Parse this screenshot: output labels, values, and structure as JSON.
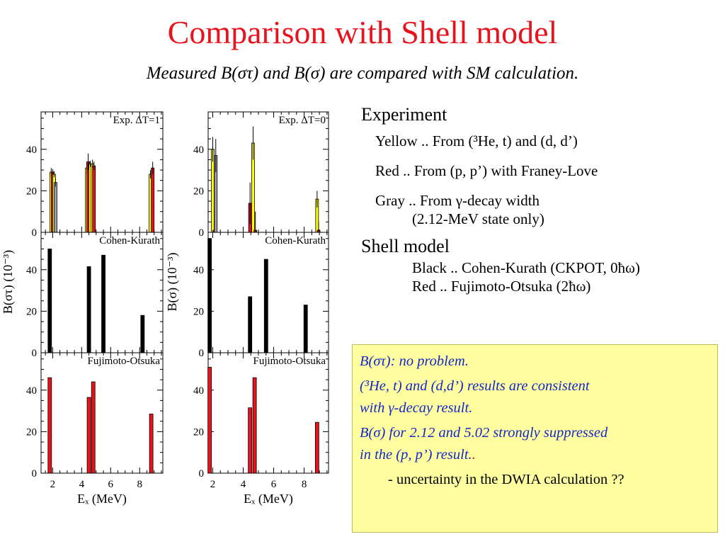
{
  "title": "Comparison with Shell model",
  "subtitle": "Measured B(στ) and B(σ) are compared with SM calculation.",
  "legend_panel": {
    "experiment_heading": "Experiment",
    "yellow": "Yellow .. From (³He, t) and  (d, d’)",
    "red": "Red .. From (p, p’) with Franey-Love",
    "gray_line1": "Gray .. From γ-decay width",
    "gray_line2": "(2.12-MeV state only)",
    "shell_heading": "Shell model",
    "black": "Black .. Cohen-Kurath (CKPOT, 0ħω)",
    "fo": "Red .. Fujimoto-Otsuka (2ħω)"
  },
  "notes": {
    "n1": "B(στ): no problem.",
    "n2a": "(³He, t) and (d,d’) results are consistent",
    "n2b": "with γ-decay result.",
    "n3a": "B(σ) for 2.12 and 5.02 strongly suppressed",
    "n3b": "in the (p, p’) result.",
    "n3dot": ".",
    "n4": "- uncertainty in the DWIA calculation ??"
  },
  "colors": {
    "title": "#e8131c",
    "yellow": "#ffff00",
    "red": "#e8131c",
    "gray": "#a0a0a0",
    "black": "#000000",
    "note_text": "#1428c8",
    "note_bg": "#ffffa0"
  },
  "chart_data": [
    {
      "type": "bar",
      "ylabel": "B(στ) (10⁻³)",
      "xlabel": "Eₓ (MeV)",
      "xlim": [
        1.2,
        9.6
      ],
      "xticks": [
        "2",
        "4",
        "6",
        "8"
      ],
      "yticks": [
        "0",
        "20",
        "40"
      ],
      "panels": [
        {
          "label": "Exp. ΔT=1",
          "ylim": [
            0,
            58
          ],
          "bars": [
            {
              "x": 1.9,
              "v": 29,
              "e": 2,
              "c": "yellow"
            },
            {
              "x": 2.0,
              "v": 29,
              "e": 1.5,
              "c": "red"
            },
            {
              "x": 2.1,
              "v": 28,
              "e": 1.5,
              "c": "yellow"
            },
            {
              "x": 2.2,
              "v": 24,
              "e": 2,
              "c": "gray"
            },
            {
              "x": 4.35,
              "v": 31,
              "e": 3,
              "c": "yellow"
            },
            {
              "x": 4.45,
              "v": 34,
              "e": 4,
              "c": "red"
            },
            {
              "x": 4.6,
              "v": 33,
              "e": 1.5,
              "c": "yellow"
            },
            {
              "x": 4.75,
              "v": 33,
              "e": 2,
              "c": "yellow"
            },
            {
              "x": 4.85,
              "v": 32,
              "e": 2,
              "c": "red"
            },
            {
              "x": 8.75,
              "v": 28,
              "e": 2,
              "c": "yellow"
            },
            {
              "x": 8.9,
              "v": 31,
              "e": 3,
              "c": "red"
            }
          ]
        },
        {
          "label": "Cohen-Kurath",
          "ylim": [
            0,
            58
          ],
          "bars": [
            {
              "x": 1.8,
              "v": 50,
              "c": "black"
            },
            {
              "x": 4.5,
              "v": 41.5,
              "c": "black"
            },
            {
              "x": 5.5,
              "v": 47,
              "c": "black"
            },
            {
              "x": 8.2,
              "v": 18,
              "c": "black"
            }
          ]
        },
        {
          "label": "Fujimoto-Otsuka",
          "ylim": [
            0,
            58
          ],
          "bars": [
            {
              "x": 1.8,
              "v": 46,
              "c": "red"
            },
            {
              "x": 4.5,
              "v": 36.5,
              "c": "red"
            },
            {
              "x": 4.8,
              "v": 44,
              "c": "red"
            },
            {
              "x": 8.8,
              "v": 28.5,
              "c": "red"
            }
          ]
        }
      ]
    },
    {
      "type": "bar",
      "ylabel": "B(σ) (10⁻³)",
      "xlabel": "Eₓ (MeV)",
      "xlim": [
        1.7,
        9.6
      ],
      "xticks": [
        "2",
        "4",
        "6",
        "8"
      ],
      "yticks": [
        "0",
        "20",
        "40"
      ],
      "panels": [
        {
          "label": "Exp. ΔT=0",
          "ylim": [
            0,
            58
          ],
          "bars": [
            {
              "x": 2.0,
              "v": 40,
              "e": 6,
              "c": "yellow"
            },
            {
              "x": 2.1,
              "v": 1,
              "e": 10,
              "c": "red"
            },
            {
              "x": 2.2,
              "v": 37,
              "e": 8,
              "c": "gray"
            },
            {
              "x": 4.45,
              "v": 14,
              "e": 10,
              "c": "red"
            },
            {
              "x": 4.65,
              "v": 43,
              "e": 8,
              "c": "yellow"
            },
            {
              "x": 4.8,
              "v": 1,
              "e": 9,
              "c": "red"
            },
            {
              "x": 8.85,
              "v": 16,
              "e": 4,
              "c": "yellow"
            },
            {
              "x": 8.95,
              "v": 1,
              "e": 4,
              "c": "red"
            }
          ]
        },
        {
          "label": "Cohen-Kurath",
          "ylim": [
            0,
            58
          ],
          "bars": [
            {
              "x": 1.8,
              "v": 55,
              "c": "black"
            },
            {
              "x": 4.45,
              "v": 27,
              "c": "black"
            },
            {
              "x": 5.5,
              "v": 45,
              "c": "black"
            },
            {
              "x": 8.1,
              "v": 23,
              "c": "black"
            }
          ]
        },
        {
          "label": "Fujimoto-Otsuka",
          "ylim": [
            0,
            58
          ],
          "bars": [
            {
              "x": 1.8,
              "v": 51,
              "c": "red"
            },
            {
              "x": 4.45,
              "v": 31.5,
              "c": "red"
            },
            {
              "x": 4.75,
              "v": 46,
              "c": "red"
            },
            {
              "x": 8.85,
              "v": 24.5,
              "c": "red"
            }
          ]
        }
      ]
    }
  ]
}
